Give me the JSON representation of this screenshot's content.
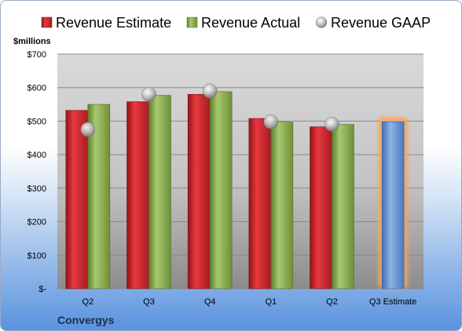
{
  "chart_data": {
    "type": "bar",
    "company": "Convergys",
    "ylabel": "$millions",
    "ylim": [
      0,
      700
    ],
    "y_ticks": [
      {
        "value": 0,
        "label": "$-"
      },
      {
        "value": 100,
        "label": "$100"
      },
      {
        "value": 200,
        "label": "$200"
      },
      {
        "value": 300,
        "label": "$300"
      },
      {
        "value": 400,
        "label": "$400"
      },
      {
        "value": 500,
        "label": "$500"
      },
      {
        "value": 600,
        "label": "$600"
      },
      {
        "value": 700,
        "label": "$700"
      }
    ],
    "grid": true,
    "legend_position": "top",
    "categories": [
      "Q2",
      "Q3",
      "Q4",
      "Q1",
      "Q2",
      "Q3 Estimate"
    ],
    "series": [
      {
        "name": "Revenue Estimate",
        "type": "bar",
        "color": "#c0272d",
        "values": [
          532,
          558,
          580,
          508,
          483,
          null
        ]
      },
      {
        "name": "Revenue Actual",
        "type": "bar",
        "color": "#8cad4e",
        "values": [
          550,
          577,
          588,
          497,
          490,
          null
        ]
      },
      {
        "name": "Revenue GAAP",
        "type": "marker",
        "color": "#b5b5b5",
        "values": [
          475,
          580,
          590,
          498,
          491,
          null
        ]
      },
      {
        "name": "Q3 Estimate",
        "type": "bar",
        "color": "#6d98d6",
        "highlight_color": "#f5a55a",
        "values": [
          null,
          null,
          null,
          null,
          null,
          498
        ]
      }
    ]
  }
}
